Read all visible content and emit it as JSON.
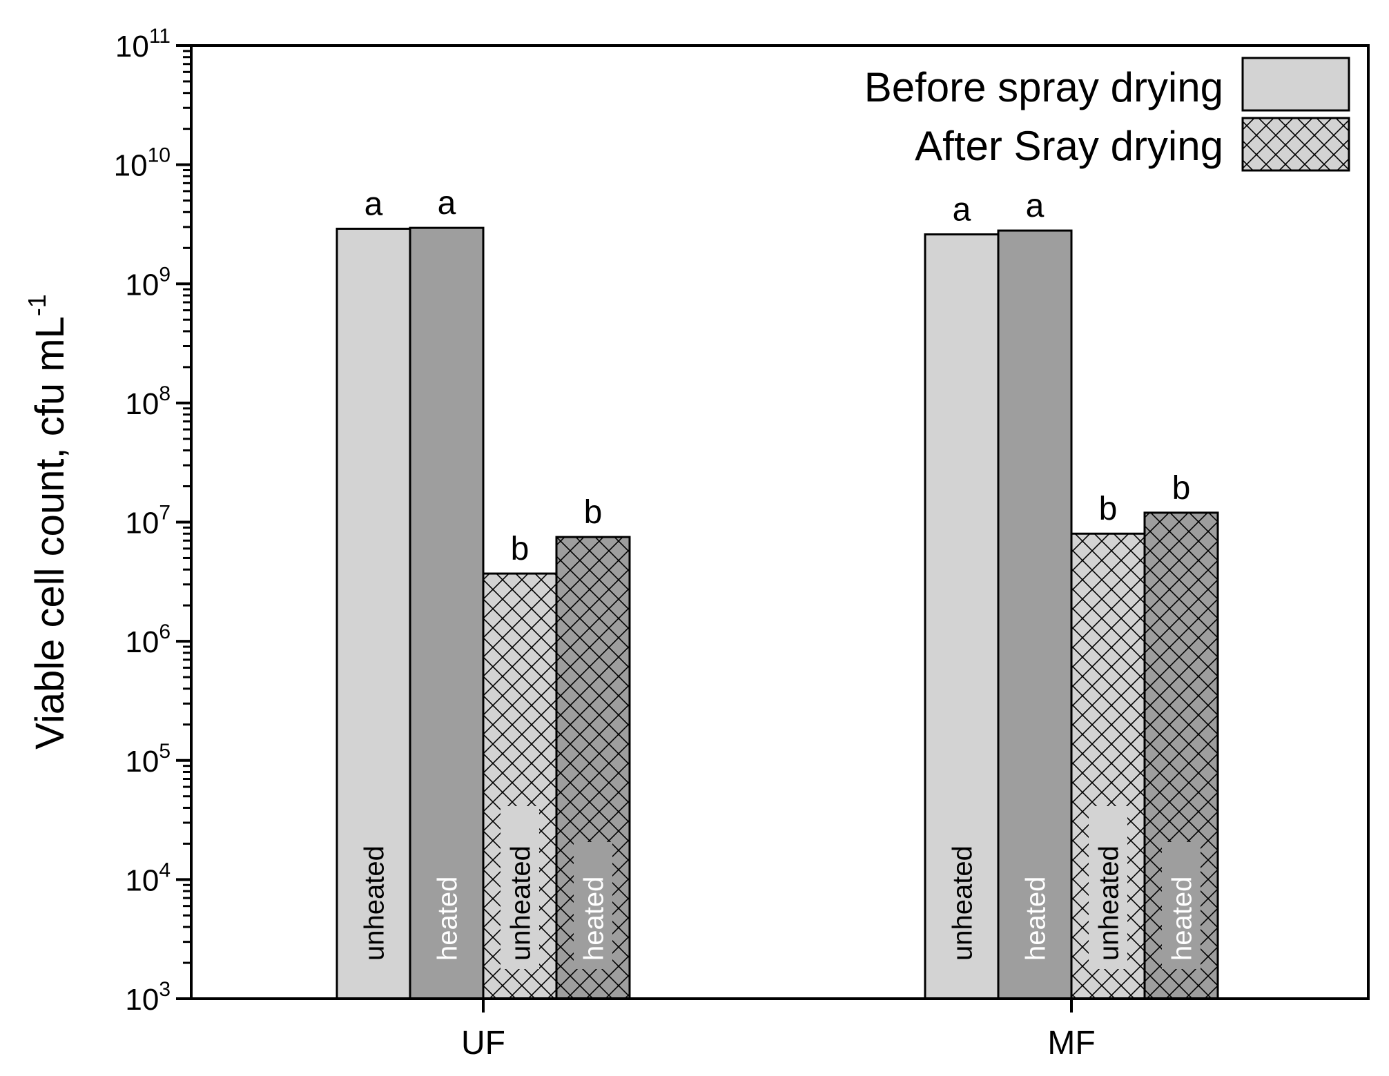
{
  "chart_data": {
    "type": "bar",
    "title": "",
    "ylabel": "Viable cell count, cfu mL",
    "ylabel_sup": "-1",
    "xlabel": "",
    "yscale": "log",
    "ylim": [
      1000,
      100000000000
    ],
    "yticks": [
      {
        "base": "10",
        "exp": "3"
      },
      {
        "base": "10",
        "exp": "4"
      },
      {
        "base": "10",
        "exp": "5"
      },
      {
        "base": "10",
        "exp": "6"
      },
      {
        "base": "10",
        "exp": "7"
      },
      {
        "base": "10",
        "exp": "8"
      },
      {
        "base": "10",
        "exp": "9"
      },
      {
        "base": "10",
        "exp": "10"
      },
      {
        "base": "10",
        "exp": "11"
      }
    ],
    "categories": [
      "UF",
      "MF"
    ],
    "legend_position": "top-right",
    "legend": [
      {
        "name": "Before spray drying",
        "pattern": "solid"
      },
      {
        "name": "After Sray drying",
        "pattern": "crosshatch"
      }
    ],
    "series": [
      {
        "stage": "Before spray drying",
        "treatment": "unheated",
        "values": [
          2900000000,
          2600000000
        ],
        "letters": [
          "a",
          "a"
        ],
        "color": "#d3d3d3",
        "hatch": false
      },
      {
        "stage": "Before spray drying",
        "treatment": "heated",
        "values": [
          2950000000,
          2800000000
        ],
        "letters": [
          "a",
          "a"
        ],
        "color": "#9e9e9e",
        "hatch": false
      },
      {
        "stage": "After Sray drying",
        "treatment": "unheated",
        "values": [
          3700000,
          8000000
        ],
        "letters": [
          "b",
          "b"
        ],
        "color": "#d3d3d3",
        "hatch": true
      },
      {
        "stage": "After Sray drying",
        "treatment": "heated",
        "values": [
          7500000,
          12000000
        ],
        "letters": [
          "b",
          "b"
        ],
        "color": "#9e9e9e",
        "hatch": true
      }
    ],
    "grid": false
  }
}
